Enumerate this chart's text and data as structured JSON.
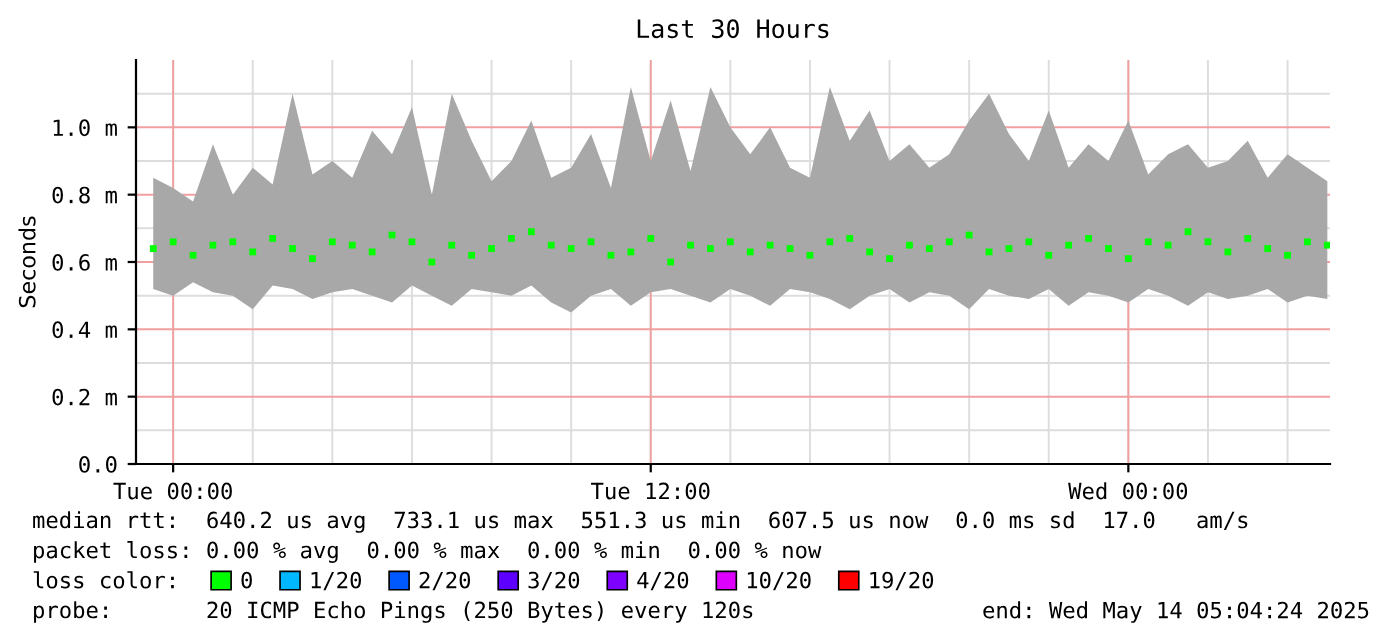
{
  "chart_data": {
    "type": "scatter",
    "title": "Last 30 Hours",
    "ylabel": "Seconds",
    "x": [
      "2025-05-12T23:30",
      "2025-05-13T00:00",
      "2025-05-13T00:30",
      "2025-05-13T01:00",
      "2025-05-13T01:30",
      "2025-05-13T02:00",
      "2025-05-13T02:30",
      "2025-05-13T03:00",
      "2025-05-13T03:30",
      "2025-05-13T04:00",
      "2025-05-13T04:30",
      "2025-05-13T05:00",
      "2025-05-13T05:30",
      "2025-05-13T06:00",
      "2025-05-13T06:30",
      "2025-05-13T07:00",
      "2025-05-13T07:30",
      "2025-05-13T08:00",
      "2025-05-13T08:30",
      "2025-05-13T09:00",
      "2025-05-13T09:30",
      "2025-05-13T10:00",
      "2025-05-13T10:30",
      "2025-05-13T11:00",
      "2025-05-13T11:30",
      "2025-05-13T12:00",
      "2025-05-13T12:30",
      "2025-05-13T13:00",
      "2025-05-13T13:30",
      "2025-05-13T14:00",
      "2025-05-13T14:30",
      "2025-05-13T15:00",
      "2025-05-13T15:30",
      "2025-05-13T16:00",
      "2025-05-13T16:30",
      "2025-05-13T17:00",
      "2025-05-13T17:30",
      "2025-05-13T18:00",
      "2025-05-13T18:30",
      "2025-05-13T19:00",
      "2025-05-13T19:30",
      "2025-05-13T20:00",
      "2025-05-13T20:30",
      "2025-05-13T21:00",
      "2025-05-13T21:30",
      "2025-05-13T22:00",
      "2025-05-13T22:30",
      "2025-05-13T23:00",
      "2025-05-13T23:30",
      "2025-05-14T00:00",
      "2025-05-14T00:30",
      "2025-05-14T01:00",
      "2025-05-14T01:30",
      "2025-05-14T02:00",
      "2025-05-14T02:30",
      "2025-05-14T03:00",
      "2025-05-14T03:30",
      "2025-05-14T04:00",
      "2025-05-14T04:30",
      "2025-05-14T05:00"
    ],
    "series": [
      {
        "name": "0",
        "color": "#00ff00",
        "values": [
          0.64,
          0.66,
          0.62,
          0.65,
          0.66,
          0.63,
          0.67,
          0.64,
          0.61,
          0.66,
          0.65,
          0.63,
          0.68,
          0.66,
          0.6,
          0.65,
          0.62,
          0.64,
          0.67,
          0.69,
          0.65,
          0.64,
          0.66,
          0.62,
          0.63,
          0.67,
          0.6,
          0.65,
          0.64,
          0.66,
          0.63,
          0.65,
          0.64,
          0.62,
          0.66,
          0.67,
          0.63,
          0.61,
          0.65,
          0.64,
          0.66,
          0.68,
          0.63,
          0.64,
          0.66,
          0.62,
          0.65,
          0.67,
          0.64,
          0.61,
          0.66,
          0.65,
          0.69,
          0.66,
          0.63,
          0.67,
          0.64,
          0.62,
          0.66,
          0.65
        ],
        "upper": [
          0.85,
          0.82,
          0.78,
          0.95,
          0.8,
          0.88,
          0.83,
          1.1,
          0.86,
          0.9,
          0.85,
          0.99,
          0.92,
          1.06,
          0.8,
          1.1,
          0.96,
          0.84,
          0.9,
          1.02,
          0.85,
          0.88,
          0.98,
          0.82,
          1.12,
          0.9,
          1.08,
          0.87,
          1.12,
          1.0,
          0.92,
          1.0,
          0.88,
          0.85,
          1.12,
          0.96,
          1.05,
          0.9,
          0.95,
          0.88,
          0.92,
          1.02,
          1.1,
          0.98,
          0.9,
          1.05,
          0.88,
          0.95,
          0.9,
          1.02,
          0.86,
          0.92,
          0.95,
          0.88,
          0.9,
          0.96,
          0.85,
          0.92,
          0.88,
          0.84
        ],
        "lower": [
          0.52,
          0.5,
          0.54,
          0.51,
          0.5,
          0.46,
          0.53,
          0.52,
          0.49,
          0.51,
          0.52,
          0.5,
          0.48,
          0.53,
          0.5,
          0.47,
          0.52,
          0.51,
          0.5,
          0.53,
          0.48,
          0.45,
          0.5,
          0.52,
          0.47,
          0.51,
          0.52,
          0.5,
          0.48,
          0.52,
          0.5,
          0.47,
          0.52,
          0.51,
          0.49,
          0.46,
          0.5,
          0.52,
          0.48,
          0.51,
          0.5,
          0.46,
          0.52,
          0.5,
          0.49,
          0.52,
          0.47,
          0.51,
          0.5,
          0.48,
          0.52,
          0.5,
          0.47,
          0.51,
          0.49,
          0.5,
          0.52,
          0.48,
          0.5,
          0.49
        ]
      },
      {
        "name": "1/20",
        "color": "#00b8ff",
        "values": [
          null,
          null,
          null,
          null,
          null,
          null,
          null,
          null,
          null,
          null,
          null,
          null,
          null,
          null,
          null,
          null,
          null,
          null,
          null,
          null,
          null,
          null,
          null,
          null,
          null,
          null,
          null,
          null,
          null,
          null,
          null,
          null,
          null,
          null,
          null,
          null,
          null,
          null,
          null,
          null,
          null,
          null,
          null,
          null,
          null,
          null,
          null,
          null,
          null,
          null,
          null,
          null,
          null,
          null,
          null,
          null,
          null,
          null,
          null,
          null
        ]
      },
      {
        "name": "2/20",
        "color": "#0059ff",
        "values": [
          null,
          null,
          null,
          null,
          null,
          null,
          null,
          null,
          null,
          null,
          null,
          null,
          null,
          null,
          null,
          null,
          null,
          null,
          null,
          null,
          null,
          null,
          null,
          null,
          null,
          null,
          null,
          null,
          null,
          null,
          null,
          null,
          null,
          null,
          null,
          null,
          null,
          null,
          null,
          null,
          null,
          null,
          null,
          null,
          null,
          null,
          null,
          null,
          null,
          null,
          null,
          null,
          null,
          null,
          null,
          null,
          null,
          null,
          null,
          null
        ]
      },
      {
        "name": "3/20",
        "color": "#5e00ff",
        "values": [
          null,
          null,
          null,
          null,
          null,
          null,
          null,
          null,
          null,
          null,
          null,
          null,
          null,
          null,
          null,
          null,
          null,
          null,
          null,
          null,
          null,
          null,
          null,
          null,
          null,
          null,
          null,
          null,
          null,
          null,
          null,
          null,
          null,
          null,
          null,
          null,
          null,
          null,
          null,
          null,
          null,
          null,
          null,
          null,
          null,
          null,
          null,
          null,
          null,
          null,
          null,
          null,
          null,
          null,
          null,
          null,
          null,
          null,
          null,
          null
        ]
      },
      {
        "name": "4/20",
        "color": "#7e00ff",
        "values": [
          null,
          null,
          null,
          null,
          null,
          null,
          null,
          null,
          null,
          null,
          null,
          null,
          null,
          null,
          null,
          null,
          null,
          null,
          null,
          null,
          null,
          null,
          null,
          null,
          null,
          null,
          null,
          null,
          null,
          null,
          null,
          null,
          null,
          null,
          null,
          null,
          null,
          null,
          null,
          null,
          null,
          null,
          null,
          null,
          null,
          null,
          null,
          null,
          null,
          null,
          null,
          null,
          null,
          null,
          null,
          null,
          null,
          null,
          null,
          null
        ]
      },
      {
        "name": "10/20",
        "color": "#dd00ff",
        "values": [
          null,
          null,
          null,
          null,
          null,
          null,
          null,
          null,
          null,
          null,
          null,
          null,
          null,
          null,
          null,
          null,
          null,
          null,
          null,
          null,
          null,
          null,
          null,
          null,
          null,
          null,
          null,
          null,
          null,
          null,
          null,
          null,
          null,
          null,
          null,
          null,
          null,
          null,
          null,
          null,
          null,
          null,
          null,
          null,
          null,
          null,
          null,
          null,
          null,
          null,
          null,
          null,
          null,
          null,
          null,
          null,
          null,
          null,
          null,
          null
        ]
      },
      {
        "name": "19/20",
        "color": "#ff0000",
        "values": [
          null,
          null,
          null,
          null,
          null,
          null,
          null,
          null,
          null,
          null,
          null,
          null,
          null,
          null,
          null,
          null,
          null,
          null,
          null,
          null,
          null,
          null,
          null,
          null,
          null,
          null,
          null,
          null,
          null,
          null,
          null,
          null,
          null,
          null,
          null,
          null,
          null,
          null,
          null,
          null,
          null,
          null,
          null,
          null,
          null,
          null,
          null,
          null,
          null,
          null,
          null,
          null,
          null,
          null,
          null,
          null,
          null,
          null,
          null,
          null
        ]
      }
    ],
    "xlim": [
      "2025-05-12T23:04",
      "2025-05-14T05:04"
    ],
    "xticks": [
      {
        "value": "2025-05-13T00:00",
        "label": "Tue 00:00"
      },
      {
        "value": "2025-05-13T12:00",
        "label": "Tue 12:00"
      },
      {
        "value": "2025-05-14T00:00",
        "label": "Wed 00:00"
      }
    ],
    "ylim": [
      0,
      1.2
    ],
    "yticks": [
      {
        "value": 0,
        "label": "0.0"
      },
      {
        "value": 0.2,
        "label": "0.2 m"
      },
      {
        "value": 0.4,
        "label": "0.4 m"
      },
      {
        "value": 0.6,
        "label": "0.6 m"
      },
      {
        "value": 0.8,
        "label": "0.8 m"
      },
      {
        "value": 1.0,
        "label": "1.0 m"
      }
    ],
    "grid": true,
    "legend": "bottom",
    "marker": "square",
    "annotations": [
      "median rtt:  640.2 us avg  733.1 us max  551.3 us min  607.5 us now  0.0 ms sd  17.0   am/s",
      "packet loss: 0.00 % avg  0.00 % max  0.00 % min  0.00 % now",
      "loss color:",
      "probe:       20 ICMP Echo Pings (250 Bytes) every 120s",
      "end: Wed May 14 05:04:24 2025"
    ]
  }
}
